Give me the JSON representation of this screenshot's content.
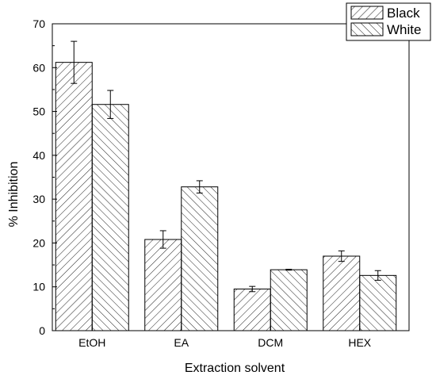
{
  "chart_data": {
    "type": "bar",
    "xlabel": "Extraction solvent",
    "ylabel": "% Inhibition",
    "ylim": [
      0,
      70
    ],
    "yticks": [
      0,
      10,
      20,
      30,
      40,
      50,
      60,
      70
    ],
    "categories": [
      "EtOH",
      "EA",
      "DCM",
      "HEX"
    ],
    "series": [
      {
        "name": "Black",
        "pattern": "diagonal-up",
        "values": [
          61.2,
          20.8,
          9.5,
          17.0
        ],
        "errors": [
          4.8,
          2.0,
          0.6,
          1.2
        ]
      },
      {
        "name": "White",
        "pattern": "diagonal-down",
        "values": [
          51.6,
          32.8,
          13.9,
          12.6
        ],
        "errors": [
          3.2,
          1.4,
          0.1,
          1.1
        ]
      }
    ],
    "legend_position": "top-right",
    "grid": false,
    "colors": {
      "stroke": "#000000",
      "fill": "#ffffff"
    }
  }
}
